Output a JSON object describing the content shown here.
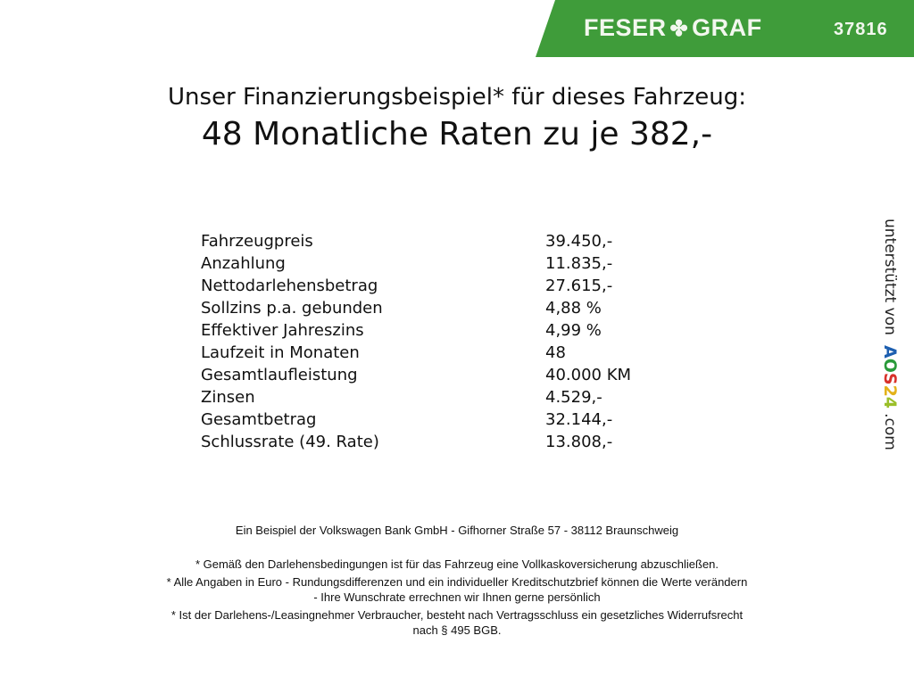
{
  "header": {
    "brand_left": "FESER",
    "brand_right": "GRAF",
    "clover_icon": "clover-icon",
    "number": "37816",
    "color": "#3f9c3a"
  },
  "title": {
    "line1": "Unser Finanzierungsbeispiel* für dieses Fahrzeug:",
    "line2": "48 Monatliche Raten zu je 382,-"
  },
  "rows": [
    {
      "label": "Fahrzeugpreis",
      "value": "39.450,-"
    },
    {
      "label": "Anzahlung",
      "value": "11.835,-"
    },
    {
      "label": "Nettodarlehensbetrag",
      "value": "27.615,-"
    },
    {
      "label": "Sollzins p.a. gebunden",
      "value": "4,88 %"
    },
    {
      "label": "Effektiver Jahreszins",
      "value": "4,99 %"
    },
    {
      "label": "Laufzeit in Monaten",
      "value": "48"
    },
    {
      "label": "Gesamtlaufleistung",
      "value": "40.000 KM"
    },
    {
      "label": "Zinsen",
      "value": "4.529,-"
    },
    {
      "label": "Gesamtbetrag",
      "value": "32.144,-"
    },
    {
      "label": "Schlussrate (49. Rate)",
      "value": "13.808,-"
    }
  ],
  "side": {
    "text": "unterstützt von",
    "logo": "AOS24",
    "suffix": ".com"
  },
  "footer": {
    "bank": "Ein Beispiel der Volkswagen Bank GmbH - Gifhorner Straße 57 - 38112 Braunschweig",
    "note1": "* Gemäß den Darlehensbedingungen ist für das Fahrzeug eine Vollkaskoversicherung abzuschließen.",
    "note2a": "* Alle Angaben in Euro - Rundungsdifferenzen und ein individueller Kreditschutzbrief können die Werte verändern",
    "note2b": "- Ihre Wunschrate errechnen wir Ihnen gerne persönlich",
    "note3a": "* Ist der Darlehens-/Leasingnehmer Verbraucher, besteht nach Vertragsschluss ein gesetzliches Widerrufsrecht",
    "note3b": "nach § 495 BGB."
  }
}
